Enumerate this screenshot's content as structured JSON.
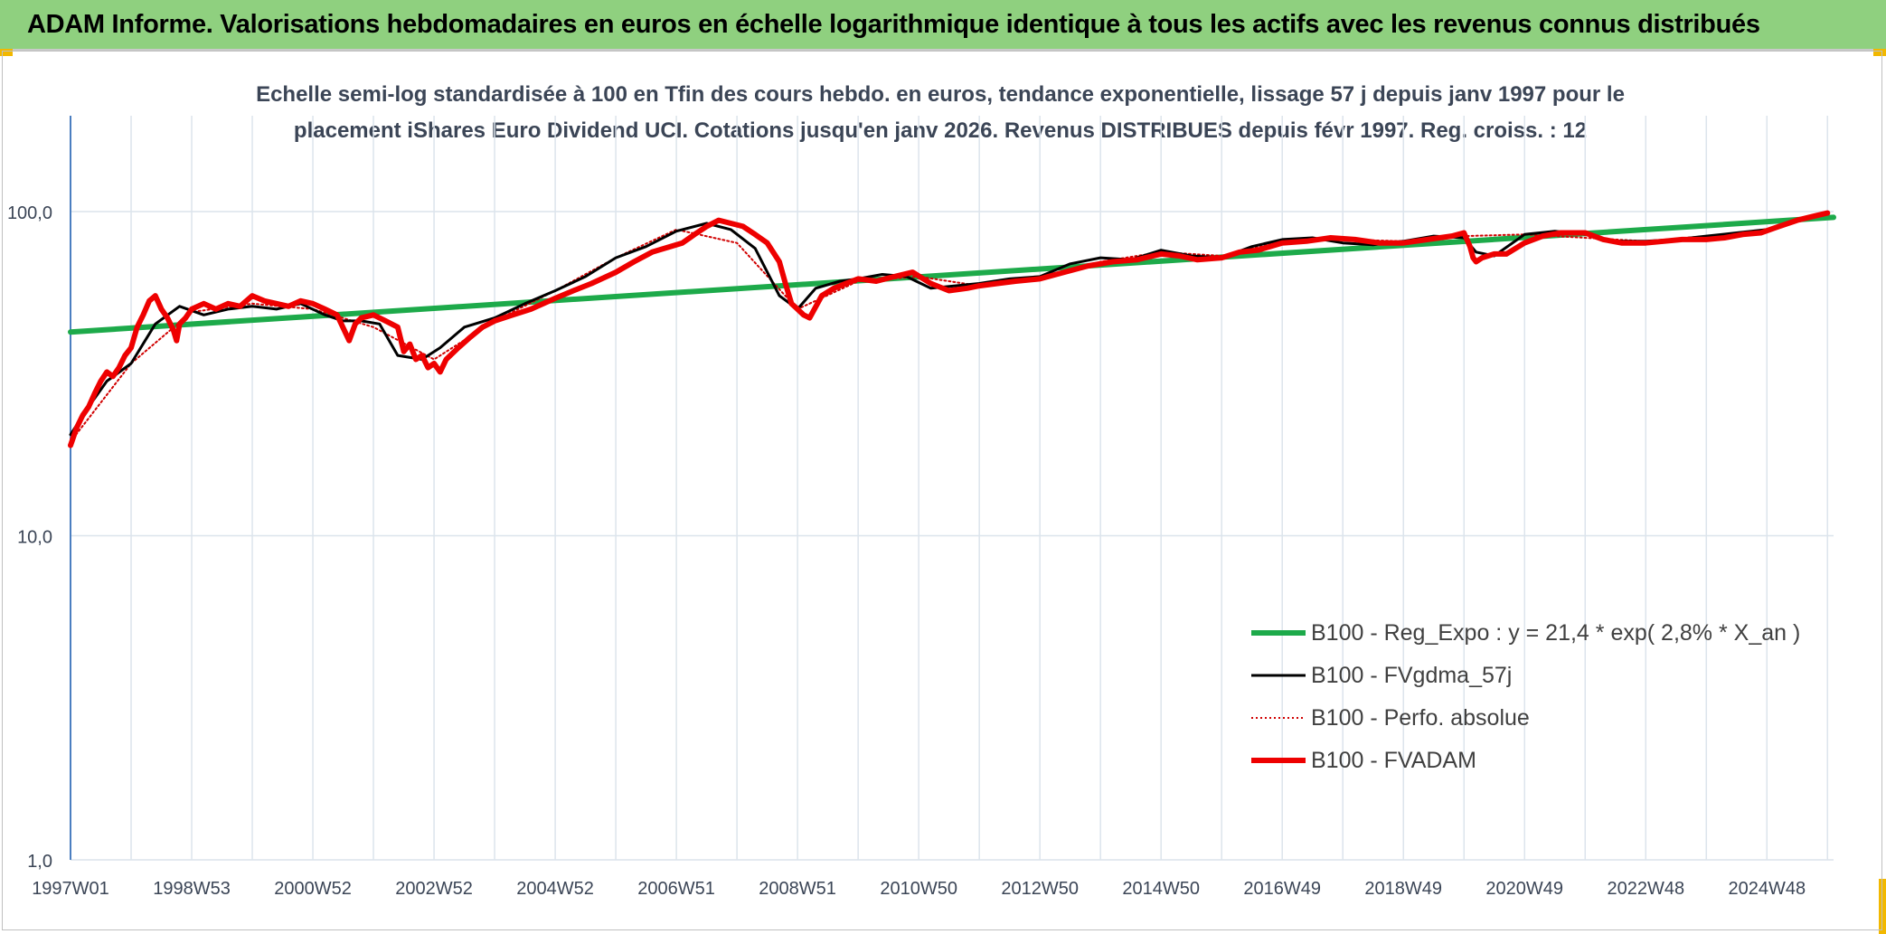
{
  "header": {
    "title": "ADAM Informe. Valorisations hebdomadaires en euros en échelle logarithmique identique à tous les actifs avec les revenus connus distribués"
  },
  "colors": {
    "header_bg": "#8fd07f",
    "corner_accent": "#f2b800",
    "reg_expo": "#1daa4a",
    "fvgdma": "#000000",
    "perfo": "#d00000",
    "fvadam": "#ee0000",
    "grid": "#dce4ec",
    "axis": "#4a7ec0",
    "text": "#3b4556"
  },
  "chart_data": {
    "type": "line",
    "title_line1": "Echelle semi-log standardisée à 100 en Tfin des cours hebdo. en euros, tendance exponentielle, lissage 57 j depuis janv 1997 pour le",
    "title_line2": "placement iShares Euro Dividend UCI. Cotations jusqu'en janv 2026. Revenus DISTRIBUES depuis févr 1997. Reg. croiss. : 12",
    "y_scale": "log",
    "ylim": [
      1,
      100
    ],
    "y_ticks": [
      "100,0",
      "10,0",
      "1,0"
    ],
    "xlim": [
      1997.0,
      2026.1
    ],
    "x_tick_labels": [
      "1997W01",
      "1998W53",
      "2000W52",
      "2002W52",
      "2004W52",
      "2006W51",
      "2008W51",
      "2010W50",
      "2012W50",
      "2014W50",
      "2016W49",
      "2018W49",
      "2020W49",
      "2022W48",
      "2024W48"
    ],
    "x_tick_years": [
      1997.0,
      1999.0,
      2001.0,
      2003.0,
      2005.0,
      2007.0,
      2009.0,
      2011.0,
      2013.0,
      2015.0,
      2017.0,
      2019.0,
      2021.0,
      2023.0,
      2025.0
    ],
    "grid": true,
    "legend_position": "right-middle",
    "series": [
      {
        "name": "B100 - Reg_Expo : y = 21,4 * exp( 2,8% *  X_an )",
        "style": "solid-thick",
        "color": "#1daa4a",
        "x": [
          1997.0,
          2026.1
        ],
        "y": [
          42.5,
          96.0
        ]
      },
      {
        "name": "B100 - FVgdma_57j",
        "style": "solid-thin",
        "color": "#000000",
        "x": [
          1997.0,
          1997.3,
          1997.6,
          1998.0,
          1998.4,
          1998.8,
          1999.2,
          1999.6,
          2000.0,
          2000.4,
          2000.8,
          2001.2,
          2001.5,
          2001.8,
          2002.1,
          2002.4,
          2002.8,
          2003.1,
          2003.5,
          2004.0,
          2004.5,
          2005.0,
          2005.5,
          2006.0,
          2006.5,
          2007.0,
          2007.5,
          2007.9,
          2008.3,
          2008.7,
          2009.0,
          2009.3,
          2009.7,
          2010.0,
          2010.4,
          2010.8,
          2011.2,
          2011.6,
          2012.0,
          2012.5,
          2013.0,
          2013.5,
          2014.0,
          2014.5,
          2015.0,
          2015.5,
          2016.0,
          2016.5,
          2017.0,
          2017.5,
          2018.0,
          2018.5,
          2019.0,
          2019.5,
          2020.0,
          2020.2,
          2020.5,
          2021.0,
          2021.5,
          2022.0,
          2022.5,
          2023.0,
          2023.5,
          2024.0,
          2024.5,
          2025.0,
          2025.5,
          2026.0
        ],
        "y": [
          20.5,
          25,
          30,
          34,
          45,
          51,
          48,
          50,
          51,
          50,
          52,
          48,
          46,
          46,
          45,
          36,
          35,
          38,
          44,
          47,
          52,
          57,
          63,
          72,
          78,
          87,
          92,
          88,
          77,
          55,
          50,
          58,
          61,
          62,
          64,
          63,
          58,
          59,
          60,
          62,
          63,
          69,
          72,
          71,
          76,
          73,
          72,
          78,
          82,
          83,
          80,
          79,
          81,
          84,
          83,
          75,
          73,
          85,
          87,
          85,
          81,
          81,
          82,
          84,
          86,
          88,
          94,
          99
        ]
      },
      {
        "name": "B100 - Perfo. absolue",
        "style": "dotted",
        "color": "#d00000",
        "x": [
          1997.0,
          1998.0,
          1999.0,
          2000.0,
          2001.0,
          2002.0,
          2003.0,
          2004.0,
          2005.0,
          2006.0,
          2007.0,
          2008.0,
          2009.0,
          2010.0,
          2011.0,
          2012.0,
          2013.0,
          2014.0,
          2015.0,
          2016.0,
          2017.0,
          2018.0,
          2019.0,
          2020.0,
          2021.0,
          2022.0,
          2023.0,
          2024.0,
          2025.0,
          2026.0
        ],
        "y": [
          19.5,
          34,
          49,
          52,
          50,
          44,
          35,
          46,
          57,
          72,
          88,
          80,
          50,
          61,
          63,
          59,
          62,
          70,
          75,
          73,
          81,
          82,
          81,
          84,
          85,
          83,
          81,
          84,
          88,
          99
        ]
      },
      {
        "name": "B100 - FVADAM",
        "style": "solid-thick",
        "color": "#ee0000",
        "x": [
          1997.0,
          1997.1,
          1997.2,
          1997.3,
          1997.4,
          1997.5,
          1997.6,
          1997.7,
          1997.8,
          1997.9,
          1998.0,
          1998.1,
          1998.2,
          1998.3,
          1998.4,
          1998.5,
          1998.6,
          1998.7,
          1998.75,
          1998.8,
          1998.9,
          1999.0,
          1999.2,
          1999.4,
          1999.6,
          1999.8,
          2000.0,
          2000.2,
          2000.4,
          2000.6,
          2000.8,
          2001.0,
          2001.2,
          2001.4,
          2001.6,
          2001.7,
          2001.8,
          2002.0,
          2002.2,
          2002.4,
          2002.5,
          2002.6,
          2002.7,
          2002.8,
          2002.9,
          2003.0,
          2003.1,
          2003.2,
          2003.4,
          2003.6,
          2003.8,
          2004.0,
          2004.3,
          2004.6,
          2005.0,
          2005.3,
          2005.6,
          2006.0,
          2006.3,
          2006.6,
          2006.9,
          2007.1,
          2007.3,
          2007.5,
          2007.7,
          2007.9,
          2008.1,
          2008.3,
          2008.5,
          2008.7,
          2008.8,
          2008.9,
          2009.0,
          2009.1,
          2009.2,
          2009.4,
          2009.6,
          2009.8,
          2010.0,
          2010.3,
          2010.6,
          2010.9,
          2011.2,
          2011.5,
          2011.8,
          2012.0,
          2012.3,
          2012.6,
          2013.0,
          2013.4,
          2013.8,
          2014.2,
          2014.6,
          2015.0,
          2015.3,
          2015.6,
          2016.0,
          2016.3,
          2016.6,
          2017.0,
          2017.4,
          2017.8,
          2018.2,
          2018.6,
          2019.0,
          2019.4,
          2019.8,
          2020.0,
          2020.1,
          2020.15,
          2020.2,
          2020.3,
          2020.5,
          2020.7,
          2021.0,
          2021.3,
          2021.6,
          2022.0,
          2022.3,
          2022.6,
          2023.0,
          2023.3,
          2023.6,
          2024.0,
          2024.3,
          2024.6,
          2024.9,
          2025.2,
          2025.5,
          2025.8,
          2026.0
        ],
        "y": [
          19.0,
          21.5,
          23.5,
          25,
          27.5,
          30,
          32,
          31,
          33,
          36,
          38,
          44,
          48,
          53,
          55,
          50,
          47,
          43,
          40,
          45,
          47,
          50,
          52,
          50,
          52,
          51,
          55,
          53,
          52,
          51,
          53,
          52,
          50,
          48,
          40,
          45,
          47,
          48,
          46,
          44,
          37,
          39,
          35,
          36,
          33,
          34,
          32,
          35,
          38,
          41,
          44,
          46,
          48,
          50,
          54,
          57,
          60,
          65,
          70,
          75,
          78,
          80,
          85,
          90,
          94,
          92,
          90,
          85,
          80,
          70,
          60,
          52,
          50,
          48,
          47,
          55,
          58,
          60,
          62,
          61,
          63,
          65,
          60,
          57,
          58,
          59,
          60,
          61,
          62,
          65,
          68,
          70,
          71,
          74,
          73,
          71,
          72,
          75,
          76,
          80,
          81,
          83,
          82,
          80,
          80,
          82,
          84,
          86,
          78,
          72,
          70,
          72,
          74,
          74,
          80,
          84,
          86,
          86,
          82,
          80,
          80,
          81,
          82,
          82,
          83,
          85,
          86,
          90,
          94,
          97,
          99
        ]
      }
    ]
  }
}
